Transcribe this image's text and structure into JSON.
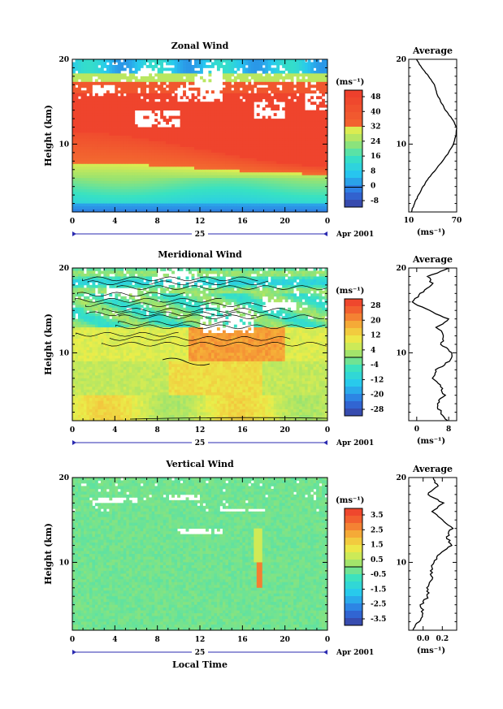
{
  "figure": {
    "shared": {
      "time_ticks": [
        "0",
        "4",
        "8",
        "12",
        "16",
        "20",
        "0"
      ],
      "height_ticks": [
        "10",
        "20"
      ],
      "date_day": "25",
      "date_month": "Apr 2001",
      "ylabel": "Height (km)",
      "unit": "(ms⁻¹)",
      "avg_title": "Average",
      "xlabel": "Local Time"
    }
  },
  "chart_data": [
    {
      "id": "zonal",
      "type": "heatmap",
      "title": "Zonal Wind",
      "x_range_hours": [
        0,
        24
      ],
      "y_range_km": [
        2,
        20
      ],
      "colorbar": {
        "ticks": [
          "48",
          "40",
          "32",
          "24",
          "16",
          "8",
          "0",
          "-8"
        ],
        "range": [
          -8,
          52
        ],
        "unit": "(ms⁻¹)"
      },
      "profile": {
        "title": "Average",
        "xlim": [
          10,
          70
        ],
        "xticks": [
          "10",
          "70"
        ],
        "xunit": "(ms⁻¹)",
        "heights": [
          2,
          3,
          4,
          5,
          6,
          7,
          8,
          9,
          10,
          11,
          12,
          13,
          14,
          15,
          16,
          17,
          18,
          19,
          20
        ],
        "values": [
          13,
          17,
          22,
          28,
          35,
          44,
          52,
          60,
          66,
          69,
          70,
          64,
          56,
          50,
          45,
          42,
          35,
          26,
          20
        ]
      }
    },
    {
      "id": "meridional",
      "type": "heatmap",
      "title": "Meridional Wind",
      "x_range_hours": [
        0,
        24
      ],
      "y_range_km": [
        2,
        20
      ],
      "colorbar": {
        "ticks": [
          "28",
          "20",
          "12",
          "4",
          "-4",
          "-12",
          "-20",
          "-28"
        ],
        "range": [
          -32,
          32
        ],
        "unit": "(ms⁻¹)"
      },
      "profile": {
        "title": "Average",
        "xlim": [
          -2,
          10
        ],
        "xticks": [
          "0",
          "8"
        ],
        "xunit": "(ms⁻¹)",
        "heights": [
          2,
          3,
          4,
          5,
          6,
          7,
          8,
          9,
          10,
          11,
          12,
          13,
          14,
          15,
          16,
          17,
          18,
          19,
          20
        ],
        "values": [
          7.5,
          6,
          5,
          7,
          6,
          4,
          5,
          8,
          9,
          6,
          7,
          5,
          8,
          3,
          -1,
          1,
          4,
          3,
          8
        ]
      }
    },
    {
      "id": "vertical",
      "type": "heatmap",
      "title": "Vertical Wind",
      "x_range_hours": [
        0,
        24
      ],
      "y_range_km": [
        2,
        20
      ],
      "colorbar": {
        "ticks": [
          "3.5",
          "2.5",
          "1.5",
          "0.5",
          "-0.5",
          "-1.5",
          "-2.5",
          "-3.5"
        ],
        "range": [
          -4,
          4
        ],
        "unit": "(ms⁻¹)"
      },
      "profile": {
        "title": "Average",
        "xlim": [
          -0.15,
          0.35
        ],
        "xticks": [
          "0.0",
          "0.2"
        ],
        "xunit": "(ms⁻¹)",
        "heights": [
          2,
          3,
          4,
          5,
          6,
          7,
          8,
          9,
          10,
          11,
          12,
          13,
          14,
          15,
          16,
          17,
          18,
          19,
          20
        ],
        "values": [
          -0.1,
          -0.05,
          0.0,
          -0.02,
          0.05,
          0.05,
          0.1,
          0.08,
          0.1,
          0.18,
          0.3,
          0.25,
          0.3,
          0.2,
          0.1,
          0.2,
          0.05,
          0.15,
          0.1
        ]
      }
    }
  ]
}
